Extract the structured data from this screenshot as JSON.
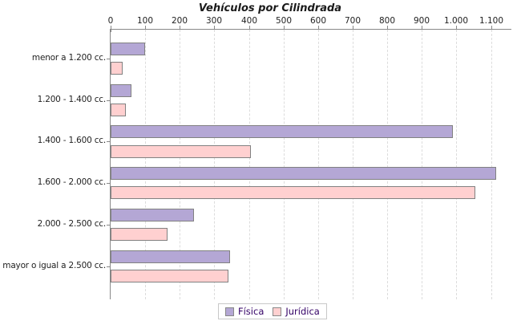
{
  "chart_data": {
    "type": "bar",
    "orientation": "horizontal",
    "title": "Vehículos por Cilindrada",
    "categories": [
      "menor a 1.200 cc.",
      "1.200 - 1.400 cc.",
      "1.400 - 1.600 cc.",
      "1.600 - 2.000 cc.",
      "2.000 - 2.500 cc.",
      "mayor o igual a 2.500 cc."
    ],
    "series": [
      {
        "name": "Física",
        "color": "#b4a7d5",
        "values": [
          100,
          60,
          990,
          1115,
          240,
          345
        ]
      },
      {
        "name": "Jurídica",
        "color": "#ffd0d0",
        "values": [
          35,
          45,
          405,
          1055,
          165,
          340
        ]
      }
    ],
    "x_axis": {
      "min": 0,
      "max": 1100,
      "tick_interval": 100,
      "tick_labels": [
        "0",
        "100",
        "200",
        "300",
        "400",
        "500",
        "600",
        "700",
        "800",
        "900",
        "1.000",
        "1.100"
      ],
      "position": "top"
    },
    "grid": "vertical-dashed",
    "legend_position": "bottom",
    "colors": {
      "axis": "#888888",
      "gridline": "#dcdcdc",
      "bar_border": "#818181",
      "legend_text": "#330066",
      "title_text": "#1a1a1a"
    }
  }
}
